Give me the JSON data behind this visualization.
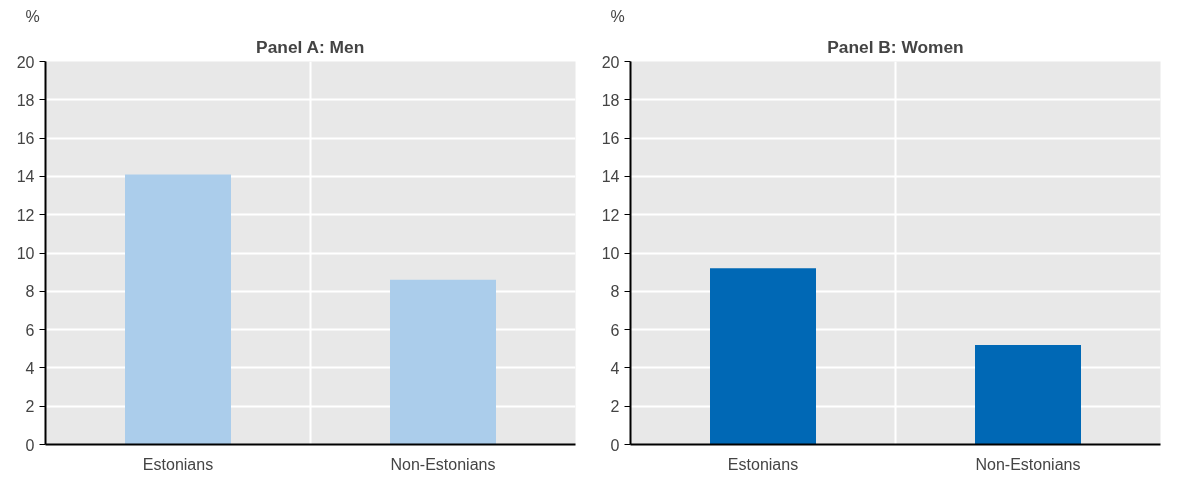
{
  "chart_data": [
    {
      "type": "bar",
      "title": "Panel A: Men",
      "ylabel": "%",
      "categories": [
        "Estonians",
        "Non-Estonians"
      ],
      "values": [
        14.1,
        8.6
      ],
      "color": "#abcdeb",
      "ylim": [
        0,
        20
      ],
      "yticks": [
        0,
        2,
        4,
        6,
        8,
        10,
        12,
        14,
        16,
        18,
        20
      ],
      "grid": true
    },
    {
      "type": "bar",
      "title": "Panel B: Women",
      "ylabel": "%",
      "categories": [
        "Estonians",
        "Non-Estonians"
      ],
      "values": [
        9.2,
        5.2
      ],
      "color": "#0068b5",
      "ylim": [
        0,
        20
      ],
      "yticks": [
        0,
        2,
        4,
        6,
        8,
        10,
        12,
        14,
        16,
        18,
        20
      ],
      "grid": true
    }
  ]
}
